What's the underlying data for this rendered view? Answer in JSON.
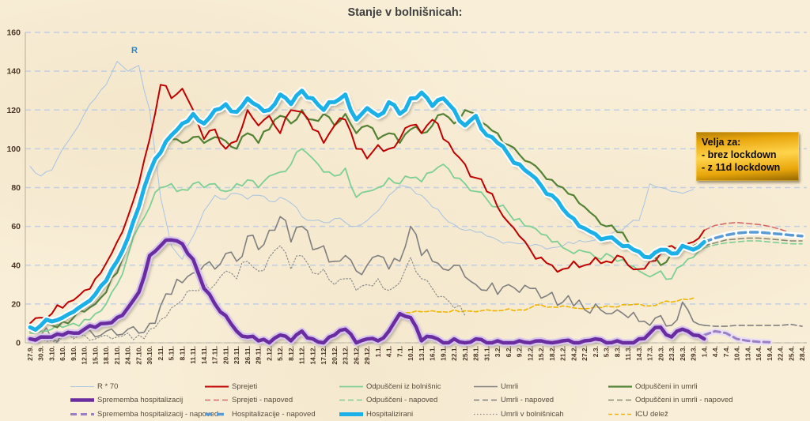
{
  "title": "Stanje v bolnišnicah:",
  "r_label": "R",
  "annotation": {
    "title": "Velja za:",
    "lines": [
      "- brez lockdown",
      "- z 11d lockdown"
    ]
  },
  "colors": {
    "background": "#f9efd8",
    "grid": "#c3cede",
    "axis_text": "#4a3526",
    "title_text": "#3f3f3f",
    "callout_gold": "#ffd44d"
  },
  "legend": {
    "rows": [
      [
        "r70",
        "sprejeti",
        "odpusceni",
        "umrli",
        "odpusceni_umrli"
      ],
      [
        "sprememba",
        "sprejeti_nap",
        "odpusceni_nap",
        "umrli_nap",
        "odp_umrli_nap"
      ],
      [
        "sprememba_nap",
        "hosp_nap",
        "hospitalizirani",
        "umrli_bolnisnice",
        "icu"
      ]
    ],
    "column_offsets": [
      0,
      170,
      340,
      510,
      680
    ]
  },
  "chart_data": {
    "type": "line",
    "title": "Stanje v bolnišnicah:",
    "xlabel": "",
    "ylabel": "",
    "ylim": [
      0,
      160
    ],
    "y_ticks": [
      0,
      20,
      40,
      60,
      80,
      100,
      120,
      140,
      160
    ],
    "grid": true,
    "legend_position": "bottom",
    "x_tick_labels": [
      "27.9.",
      "30.9.",
      "3.10.",
      "6.10.",
      "9.10.",
      "12.10.",
      "15.10.",
      "18.10.",
      "21.10.",
      "24.10.",
      "27.10.",
      "30.10.",
      "2.11.",
      "5.11.",
      "8.11.",
      "11.11.",
      "14.11.",
      "17.11.",
      "20.11.",
      "23.11.",
      "26.11.",
      "29.11.",
      "2.12.",
      "5.12.",
      "8.12.",
      "11.12.",
      "14.12.",
      "17.12.",
      "20.12.",
      "23.12.",
      "26.12.",
      "29.12.",
      "1.1.",
      "4.1.",
      "7.1.",
      "10.1.",
      "13.1.",
      "16.1.",
      "19.1.",
      "22.1.",
      "25.1.",
      "28.1.",
      "31.1.",
      "3.2.",
      "6.2.",
      "9.2.",
      "12.2.",
      "15.2.",
      "18.2.",
      "21.2.",
      "24.2.",
      "27.2.",
      "2.3.",
      "5.3.",
      "8.3.",
      "11.3.",
      "14.3.",
      "17.3.",
      "20.3.",
      "23.3.",
      "26.3.",
      "29.3.",
      "1.4.",
      "4.4.",
      "7.4.",
      "10.4.",
      "13.4.",
      "16.4.",
      "19.4.",
      "22.4.",
      "25.4.",
      "28.4."
    ],
    "series": [
      {
        "id": "r70",
        "name": "R * 70",
        "color": "#a8c4e0",
        "width": 1,
        "dash": "",
        "halo": null,
        "shadow": false,
        "jitter": 1.5,
        "start": 0,
        "values": [
          91,
          86,
          89,
          100,
          108,
          118,
          126,
          133,
          145,
          140,
          143,
          120,
          75,
          50,
          43,
          55,
          68,
          76,
          74,
          77,
          74,
          76,
          73,
          75,
          72,
          65,
          63,
          62,
          64,
          62,
          60,
          63,
          68,
          76,
          81,
          80,
          76,
          70,
          65,
          61,
          58,
          57,
          55,
          53,
          52,
          51,
          50,
          50,
          49,
          50,
          51,
          52,
          53,
          55,
          58,
          61,
          63,
          82,
          80,
          78,
          77,
          79
        ]
      },
      {
        "id": "icu",
        "name": "ICU delež",
        "color": "#f0b400",
        "width": 1.6,
        "dash": "5 3",
        "halo": null,
        "shadow": false,
        "jitter": 0.8,
        "start": 34,
        "values": [
          16,
          15.5,
          16,
          16.5,
          16,
          17,
          16.5,
          16,
          17,
          16.5,
          17.5,
          17,
          18,
          19.5,
          18.5,
          19,
          18,
          17.5,
          18.5,
          19,
          18.5,
          19.5,
          20,
          19,
          20.5,
          21,
          22.5,
          23
        ]
      },
      {
        "id": "umrli_bolnisnice",
        "name": "Umrli v bolnišnicah",
        "color": "#8c8c8c",
        "width": 1.2,
        "dash": "1.5 2.5",
        "halo": null,
        "shadow": false,
        "jitter": 4,
        "start": 0,
        "values": [
          1,
          2,
          1,
          3,
          2,
          4,
          2,
          4,
          3,
          5,
          4,
          7,
          12,
          18,
          22,
          27,
          32,
          30,
          37,
          33,
          42,
          37,
          44,
          50,
          38,
          45,
          36,
          38,
          30,
          33,
          27,
          30,
          33,
          27,
          31,
          44,
          33,
          28,
          24,
          18,
          14
        ]
      },
      {
        "id": "umrli",
        "name": "Umrli",
        "color": "#7f7f7f",
        "width": 1.6,
        "dash": "",
        "halo": null,
        "shadow": false,
        "jitter": 5,
        "start": 0,
        "values": [
          2,
          4,
          2,
          5,
          3,
          6,
          3,
          6,
          4,
          7,
          5,
          10,
          19,
          25,
          31,
          36,
          40,
          38,
          46,
          42,
          55,
          48,
          58,
          65,
          52,
          60,
          48,
          50,
          42,
          45,
          37,
          40,
          45,
          38,
          42,
          60,
          45,
          42,
          38,
          40,
          34,
          30,
          27,
          25,
          30,
          26,
          28,
          23,
          26,
          21,
          19,
          17,
          20,
          15,
          17,
          13,
          11,
          9,
          14,
          9,
          21,
          11,
          9
        ]
      },
      {
        "id": "odpusceni",
        "name": "Odpuščeni iz bolnišnic",
        "color": "#7ecf95",
        "width": 1.8,
        "dash": "",
        "halo": null,
        "shadow": false,
        "jitter": 2.5,
        "start": 0,
        "values": [
          5,
          6,
          7,
          8,
          10,
          12,
          15,
          20,
          30,
          45,
          60,
          70,
          80,
          82,
          79,
          82,
          80,
          82,
          78,
          82,
          84,
          80,
          86,
          88,
          92,
          100,
          95,
          88,
          86,
          90,
          75,
          78,
          80,
          85,
          82,
          85,
          83,
          88,
          92,
          85,
          82,
          78,
          74,
          70,
          67,
          64,
          60,
          56,
          52,
          49,
          46,
          47,
          44,
          46,
          42,
          40,
          37,
          34,
          37,
          33,
          40,
          44,
          49
        ]
      },
      {
        "id": "odp_umrli_nap",
        "name": "Odpuščeni in umrli - napoved",
        "color": "#8a8a74",
        "width": 1.6,
        "dash": "7 4",
        "halo": null,
        "shadow": false,
        "jitter": 0,
        "start": 62,
        "values": [
          50,
          51.5,
          53,
          53.5,
          54,
          54,
          53.5,
          53,
          52.5,
          52.5
        ]
      },
      {
        "id": "odpusceni_nap",
        "name": "Odpuščeni - napoved",
        "color": "#7ecf95",
        "width": 1.6,
        "dash": "7 4",
        "halo": null,
        "shadow": false,
        "jitter": 0,
        "start": 62,
        "values": [
          49,
          50.5,
          51.5,
          52,
          52.5,
          52.5,
          52,
          51.5,
          51,
          51
        ]
      },
      {
        "id": "umrli_nap",
        "name": "Umrli - napoved",
        "color": "#7f7f7f",
        "width": 1.6,
        "dash": "7 4",
        "halo": null,
        "shadow": false,
        "jitter": 0,
        "start": 62,
        "values": [
          9,
          8.5,
          8.5,
          9,
          9,
          9,
          9,
          9,
          9.5,
          8.5
        ]
      },
      {
        "id": "sprejeti_nap",
        "name": "Sprejeti - napoved",
        "color": "#d66a6a",
        "width": 1.6,
        "dash": "7 4",
        "halo": null,
        "shadow": false,
        "jitter": 0,
        "start": 62,
        "values": [
          58,
          60.5,
          61.5,
          62,
          61.5,
          61,
          60,
          58.5,
          56.5,
          54
        ]
      },
      {
        "id": "hosp_nap",
        "name": "Hospitalizacije - napoved",
        "color": "#5b9bd5",
        "width": 3.5,
        "dash": "9 6",
        "halo": "#ffffff",
        "shadow": false,
        "jitter": 0,
        "start": 62,
        "values": [
          52,
          54,
          55.5,
          56.5,
          57,
          57,
          56.5,
          56,
          55.5,
          55
        ]
      },
      {
        "id": "sprememba_nap",
        "name": "Sprememba hospitalizacij - napoved",
        "color": "#9b7fc4",
        "width": 3,
        "dash": "8 5",
        "halo": "#e9dff4",
        "shadow": false,
        "jitter": 0,
        "start": 62,
        "values": [
          4,
          6,
          5,
          2,
          1,
          0.5,
          0.3
        ]
      },
      {
        "id": "odpusceni_umrli",
        "name": "Odpuščeni in umrli",
        "color": "#548235",
        "width": 2.2,
        "dash": "",
        "halo": null,
        "shadow": false,
        "jitter": 2.5,
        "start": 0,
        "values": [
          6,
          8,
          9,
          11,
          13,
          16,
          20,
          26,
          36,
          50,
          70,
          90,
          100,
          105,
          103,
          106,
          103,
          106,
          104,
          100,
          108,
          103,
          110,
          117,
          113,
          120,
          115,
          118,
          112,
          118,
          108,
          112,
          105,
          108,
          103,
          110,
          108,
          112,
          118,
          113,
          120,
          118,
          112,
          108,
          102,
          97,
          93,
          88,
          84,
          80,
          76,
          70,
          65,
          60,
          57,
          52,
          48,
          44,
          40,
          46,
          48,
          50,
          54
        ]
      },
      {
        "id": "sprejeti",
        "name": "Sprejeti",
        "color": "#c00000",
        "width": 2,
        "dash": "",
        "halo": null,
        "shadow": false,
        "jitter": 3,
        "start": 0,
        "values": [
          10,
          13,
          15,
          18,
          22,
          27,
          33,
          41,
          52,
          65,
          82,
          105,
          133,
          126,
          131,
          120,
          105,
          110,
          100,
          104,
          120,
          112,
          117,
          108,
          120,
          119,
          110,
          103,
          112,
          115,
          100,
          95,
          102,
          100,
          105,
          112,
          108,
          115,
          105,
          98,
          92,
          85,
          78,
          70,
          62,
          55,
          48,
          44,
          40,
          38,
          42,
          40,
          44,
          42,
          45,
          40,
          38,
          42,
          46,
          50,
          48,
          52,
          58
        ]
      },
      {
        "id": "hospitalizirani",
        "name": "Hospitalizirani",
        "color": "#1cb0e8",
        "width": 5,
        "dash": "",
        "halo": "#ffffff",
        "shadow": true,
        "jitter": 2,
        "start": 0,
        "values": [
          8,
          9,
          11,
          13,
          16,
          20,
          25,
          32,
          42,
          54,
          70,
          88,
          98,
          107,
          113,
          118,
          113,
          120,
          123,
          119,
          126,
          122,
          120,
          128,
          123,
          130,
          126,
          120,
          124,
          128,
          115,
          121,
          117,
          124,
          118,
          126,
          129,
          122,
          126,
          120,
          112,
          117,
          107,
          103,
          97,
          92,
          87,
          81,
          76,
          69,
          64,
          59,
          56,
          54,
          52,
          50,
          47,
          44,
          48,
          46,
          50,
          48,
          52
        ]
      },
      {
        "id": "sprememba",
        "name": "Sprememba hospitalizacij",
        "color": "#6a2da0",
        "width": 4.5,
        "dash": "",
        "halo": "#d9c6ec",
        "shadow": true,
        "jitter": 1.5,
        "start": 0,
        "values": [
          2,
          3,
          3,
          4,
          5,
          7,
          8,
          10,
          13,
          18,
          26,
          45,
          50,
          53,
          51,
          43,
          28,
          20,
          14,
          6,
          3,
          1,
          0,
          4,
          1,
          6,
          2,
          0,
          4,
          7,
          0,
          2,
          1,
          6,
          15,
          13,
          1,
          3,
          0,
          2,
          0,
          2,
          0,
          1,
          0,
          1,
          0,
          1,
          0,
          1,
          0,
          1,
          2,
          0,
          1,
          0,
          2,
          5,
          8,
          3,
          7,
          4,
          2
        ]
      }
    ]
  }
}
